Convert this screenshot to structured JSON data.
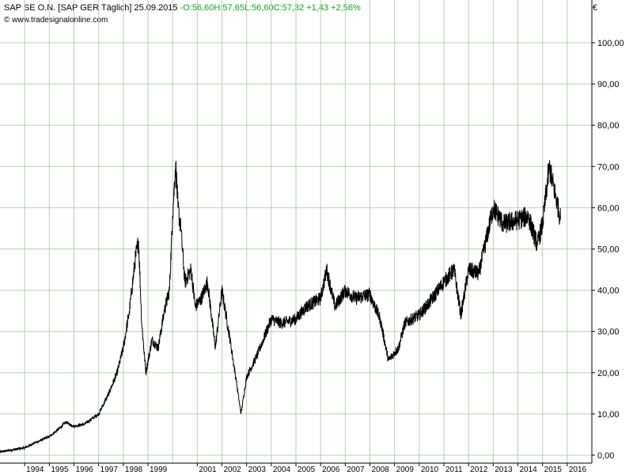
{
  "header": {
    "title": "SAP SE O.N.",
    "instrument": "[SAP GER  Täglich]",
    "date": "25.09.2015",
    "separator": "-",
    "open": "O:56,60",
    "high": "H:57,65",
    "low": "L:56,60",
    "close": "C:57,32",
    "change": "+1,43",
    "change_pct": "+2,56%",
    "source": "© www.tradesignalonline.com"
  },
  "currency_symbol": "€",
  "colors": {
    "price_line": "#000000",
    "grid": "#b4d2b4",
    "plot_bg": "#ffffff",
    "axis_line": "#000000",
    "change_positive": "#13a51d"
  },
  "chart_data": {
    "type": "line",
    "title": "",
    "xlabel": "",
    "ylabel": "€",
    "grid": true,
    "y_axis_side": "right",
    "ylim": [
      -1,
      104
    ],
    "xlim": [
      "1993-01-01",
      "2016-12-31"
    ],
    "y_ticks": [
      0,
      10,
      20,
      30,
      40,
      50,
      60,
      70,
      80,
      90,
      100
    ],
    "y_tick_labels": [
      "0,00",
      "10,00",
      "20,00",
      "30,00",
      "40,00",
      "50,00",
      "60,00",
      "70,00",
      "80,00",
      "90,00",
      "100,00"
    ],
    "x_tick_labels": [
      "1994",
      "1995",
      "1996",
      "1997",
      "1998",
      "1999",
      "2001",
      "2002",
      "2003",
      "2004",
      "2005",
      "2006",
      "2007",
      "2008",
      "2009",
      "2010",
      "2011",
      "2012",
      "2013",
      "2014",
      "2015",
      "2016"
    ],
    "series": [
      {
        "x": [
          "1993-01-01",
          "1993-06-01",
          "1994-01-01",
          "1994-06-01",
          "1995-01-01",
          "1995-06-01",
          "1995-09-01",
          "1996-01-01",
          "1996-06-01",
          "1997-01-01",
          "1997-06-01",
          "1997-10-01",
          "1998-01-01",
          "1998-04-01",
          "1998-07-01",
          "1998-08-15",
          "1998-10-01",
          "1998-12-01",
          "1999-03-01",
          "1999-06-01",
          "1999-09-01",
          "1999-11-15",
          "2000-01-01",
          "2000-02-15",
          "2000-03-20",
          "2000-05-01",
          "2000-07-01",
          "2000-10-01",
          "2000-12-01",
          "2001-03-01",
          "2001-06-01",
          "2001-09-25",
          "2002-01-01",
          "2002-05-01",
          "2002-08-01",
          "2002-10-10",
          "2003-01-01",
          "2003-06-01",
          "2004-01-01",
          "2004-06-01",
          "2005-01-01",
          "2005-06-01",
          "2006-01-01",
          "2006-04-01",
          "2006-08-01",
          "2007-01-01",
          "2007-06-01",
          "2008-01-01",
          "2008-06-01",
          "2008-10-01",
          "2009-03-01",
          "2009-06-01",
          "2010-01-01",
          "2010-06-01",
          "2011-01-01",
          "2011-06-01",
          "2011-09-10",
          "2012-01-01",
          "2012-06-01",
          "2013-01-01",
          "2013-06-01",
          "2014-01-01",
          "2014-06-01",
          "2014-10-15",
          "2015-01-01",
          "2015-04-10",
          "2015-06-01",
          "2015-08-20",
          "2015-09-25"
        ],
        "values": [
          0.8,
          1.2,
          1.8,
          3,
          4.5,
          6.5,
          8,
          7,
          7.5,
          10,
          15,
          20,
          26,
          35,
          48,
          52,
          32,
          20,
          28,
          26,
          35,
          40,
          58,
          71,
          60,
          55,
          42,
          45,
          36,
          38,
          42,
          26,
          40,
          28,
          18,
          10,
          19,
          24,
          33,
          32,
          33,
          36,
          38,
          45,
          36,
          40,
          38,
          39,
          33,
          23,
          26,
          32,
          34,
          37,
          42,
          45,
          34,
          45,
          44,
          60,
          56,
          57,
          58,
          51,
          56,
          70,
          66,
          60,
          57.32
        ]
      }
    ]
  }
}
